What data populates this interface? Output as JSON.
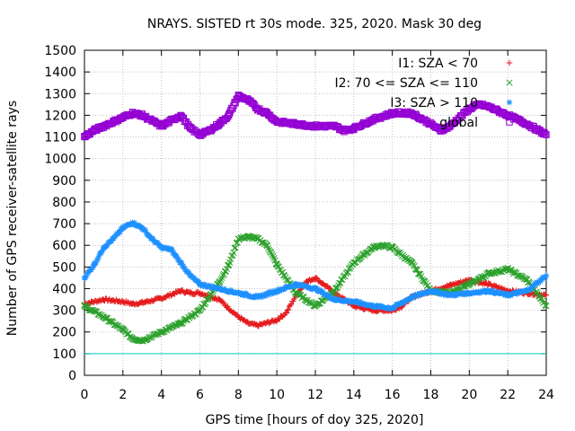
{
  "chart_data": {
    "type": "scatter",
    "title": "NRAYS. SISTED rt 30s mode. 325, 2020. Mask 30 deg",
    "xlabel": "GPS time [hours of doy 325, 2020]",
    "ylabel": "Number of GPS receiver-satellite rays",
    "xlim": [
      0,
      24
    ],
    "ylim": [
      0,
      1500
    ],
    "xticks": [
      "0",
      "2",
      "4",
      "6",
      "8",
      "10",
      "12",
      "14",
      "16",
      "18",
      "20",
      "22",
      "24"
    ],
    "yticks": [
      "0",
      "100",
      "200",
      "300",
      "400",
      "500",
      "600",
      "700",
      "800",
      "900",
      "1000",
      "1100",
      "1200",
      "1300",
      "1400",
      "1500"
    ],
    "grid": true,
    "legend_position": "top-right",
    "threshold_line": {
      "value": 100,
      "color": "#00ced1"
    },
    "series": [
      {
        "name": "I1: SZA < 70",
        "marker": "+",
        "color": "#e41a1c",
        "x": [
          0,
          1,
          2,
          2.5,
          3,
          4,
          5,
          5.5,
          6,
          7,
          8,
          8.5,
          9,
          10,
          10.5,
          11,
          11.5,
          12,
          13,
          14,
          15,
          16,
          16.5,
          17,
          18,
          19,
          20,
          21,
          22,
          23,
          24
        ],
        "y": [
          330,
          350,
          340,
          330,
          335,
          355,
          390,
          380,
          380,
          350,
          270,
          240,
          230,
          255,
          290,
          370,
          430,
          450,
          380,
          320,
          300,
          300,
          320,
          360,
          390,
          415,
          440,
          420,
          390,
          380,
          370
        ]
      },
      {
        "name": "I2: 70 <= SZA <= 110",
        "marker": "x",
        "color": "#2ca02c",
        "x": [
          0,
          1,
          2,
          2.5,
          3,
          4,
          5,
          6,
          7,
          7.5,
          8,
          8.5,
          9,
          9.5,
          10,
          11,
          12,
          13,
          14,
          15,
          15.5,
          16,
          17,
          18,
          19,
          20,
          21,
          22,
          23,
          24
        ],
        "y": [
          320,
          270,
          210,
          170,
          160,
          200,
          240,
          300,
          430,
          510,
          630,
          640,
          630,
          600,
          510,
          380,
          320,
          390,
          520,
          590,
          600,
          590,
          520,
          390,
          380,
          420,
          470,
          490,
          440,
          320
        ]
      },
      {
        "name": "I3: SZA > 110",
        "marker": "*",
        "color": "#1e90ff",
        "x": [
          0,
          0.5,
          1,
          1.5,
          2,
          2.5,
          3,
          3.5,
          4,
          4.5,
          5,
          5.5,
          6,
          7,
          8,
          9,
          10,
          11,
          12,
          13,
          14,
          15,
          16,
          17,
          18,
          19,
          20,
          21,
          22,
          23,
          24
        ],
        "y": [
          450,
          510,
          590,
          630,
          680,
          705,
          680,
          630,
          590,
          580,
          520,
          460,
          420,
          400,
          380,
          360,
          390,
          420,
          400,
          350,
          340,
          320,
          310,
          360,
          390,
          370,
          380,
          390,
          370,
          390,
          460
        ]
      },
      {
        "name": "global",
        "marker": "square",
        "color": "#9400d3",
        "x": [
          0,
          0.5,
          1,
          1.5,
          2,
          2.5,
          3,
          4,
          5,
          5.5,
          6,
          6.5,
          7,
          7.5,
          8,
          8.5,
          9,
          9.5,
          10,
          11,
          12,
          13,
          13.5,
          14,
          15,
          16,
          17,
          18,
          18.5,
          19,
          20,
          20.5,
          21,
          22,
          23,
          24
        ],
        "y": [
          1100,
          1130,
          1150,
          1170,
          1190,
          1210,
          1200,
          1150,
          1200,
          1140,
          1110,
          1130,
          1160,
          1200,
          1290,
          1270,
          1230,
          1210,
          1170,
          1160,
          1150,
          1150,
          1130,
          1140,
          1180,
          1210,
          1210,
          1160,
          1130,
          1150,
          1230,
          1250,
          1240,
          1200,
          1160,
          1110
        ]
      }
    ]
  }
}
